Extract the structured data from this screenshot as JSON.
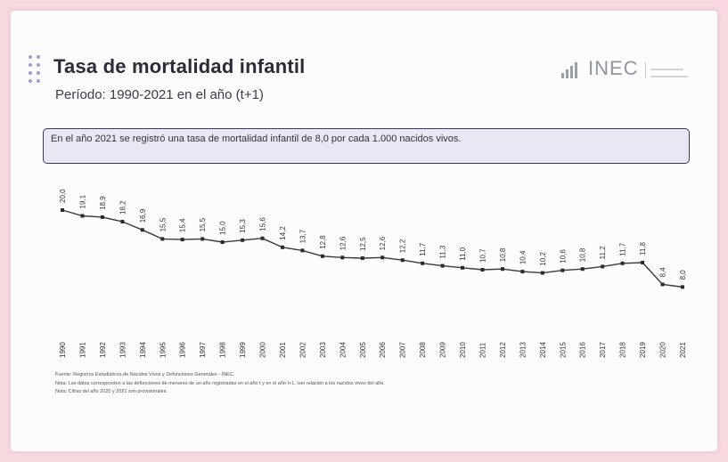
{
  "header": {
    "title": "Tasa de mortalidad infantil",
    "subtitle": "Período: 1990-2021 en el año (t+1)"
  },
  "logo": {
    "brand": "INEC"
  },
  "banner": {
    "text": "En el año 2021 se registró una tasa de mortalidad infantil de 8,0 por cada 1.000 nacidos vivos."
  },
  "colors": {
    "line": "#3a3a3a",
    "marker": "#2a2a2a",
    "banner_bg": "#e9e7f4",
    "page_bg": "#f7d9df"
  },
  "chart_data": {
    "type": "line",
    "title": "Tasa de mortalidad infantil",
    "subtitle": "Período: 1990-2021 en el año (t+1)",
    "xlabel": "",
    "ylabel": "",
    "grid": false,
    "categories": [
      "1990",
      "1991",
      "1992",
      "1993",
      "1994",
      "1995",
      "1996",
      "1997",
      "1998",
      "1999",
      "2000",
      "2001",
      "2002",
      "2003",
      "2004",
      "2005",
      "2006",
      "2007",
      "2008",
      "2009",
      "2010",
      "2011",
      "2012",
      "2013",
      "2014",
      "2015",
      "2016",
      "2017",
      "2018",
      "2019",
      "2020",
      "2021"
    ],
    "values": [
      20.0,
      19.1,
      18.9,
      18.2,
      16.9,
      15.5,
      15.4,
      15.5,
      15.0,
      15.3,
      15.6,
      14.2,
      13.7,
      12.8,
      12.6,
      12.5,
      12.6,
      12.2,
      11.7,
      11.3,
      11.0,
      10.7,
      10.8,
      10.4,
      10.2,
      10.6,
      10.8,
      11.2,
      11.7,
      11.8,
      8.4,
      8.0
    ],
    "ylim": [
      0,
      25
    ]
  },
  "footnotes": [
    "Fuente: Registros Estadísticos de Nacidos Vivos y Defunciones Generales - INEC.",
    "Nota: Los datos corresponden a las defunciones de menores de un año registradas en el año t y en el año t+1, con relación a los nacidos vivos del año.",
    "Nota: Cifras del año 2020 y 2021 son provisionales."
  ]
}
